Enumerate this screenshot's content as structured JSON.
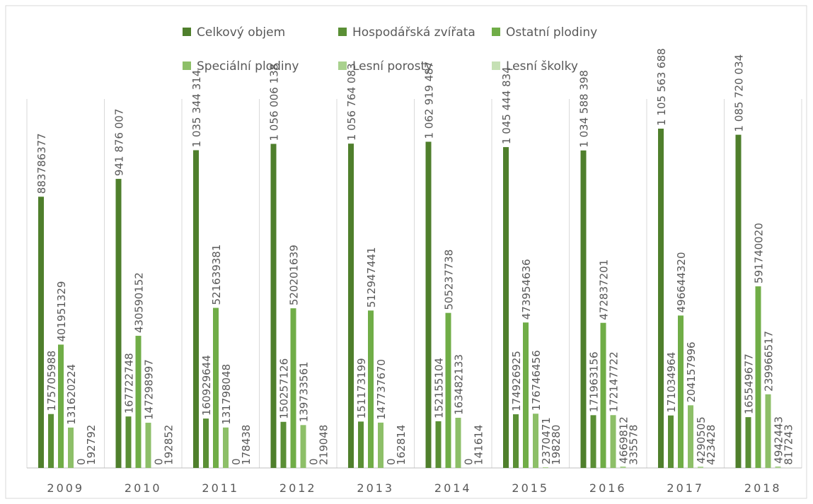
{
  "chart_data": {
    "type": "bar",
    "categories": [
      "2009",
      "2010",
      "2011",
      "2012",
      "2013",
      "2014",
      "2015",
      "2016",
      "2017",
      "2018"
    ],
    "series": [
      {
        "name": "Celkový objem",
        "color": "#4f7f2c",
        "values": [
          883786377,
          941876007,
          1035344314,
          1056006138,
          1056764083,
          1062919487,
          1045444834,
          1034588398,
          1105563688,
          1085720034
        ],
        "value_labels": [
          "883786377",
          "941 876 007",
          "1 035 344 314",
          "1 056 006 138",
          "1 056 764 083",
          "1 062 919 487",
          "1 045 444 834",
          "1 034 588 398",
          "1 105 563 688",
          "1 085 720 034"
        ]
      },
      {
        "name": "Hospodářská zvířata",
        "color": "#5a8f35",
        "values": [
          175705988,
          167722748,
          160929644,
          150257126,
          151173199,
          152155104,
          174926925,
          171963156,
          171034964,
          165549677
        ]
      },
      {
        "name": "Ostatní plodiny",
        "color": "#70ad47",
        "values": [
          401951329,
          430590152,
          521639381,
          520201639,
          512947441,
          505237738,
          473954636,
          472837201,
          496644320,
          591740020
        ]
      },
      {
        "name": "Speciální plodiny",
        "color": "#8dbf68",
        "values": [
          131620224,
          147298997,
          131798048,
          139733561,
          147737670,
          163482133,
          176746456,
          172147722,
          204157996,
          239966517
        ]
      },
      {
        "name": "Lesní porosty",
        "color": "#a9d18e",
        "values": [
          0,
          0,
          0,
          0,
          0,
          0,
          2370471,
          4669812,
          4290505,
          4942443
        ]
      },
      {
        "name": "Lesní školky",
        "color": "#c5e0b4",
        "values": [
          192792,
          192852,
          178438,
          219048,
          162814,
          141614,
          198280,
          335578,
          423428,
          817243
        ]
      }
    ]
  }
}
